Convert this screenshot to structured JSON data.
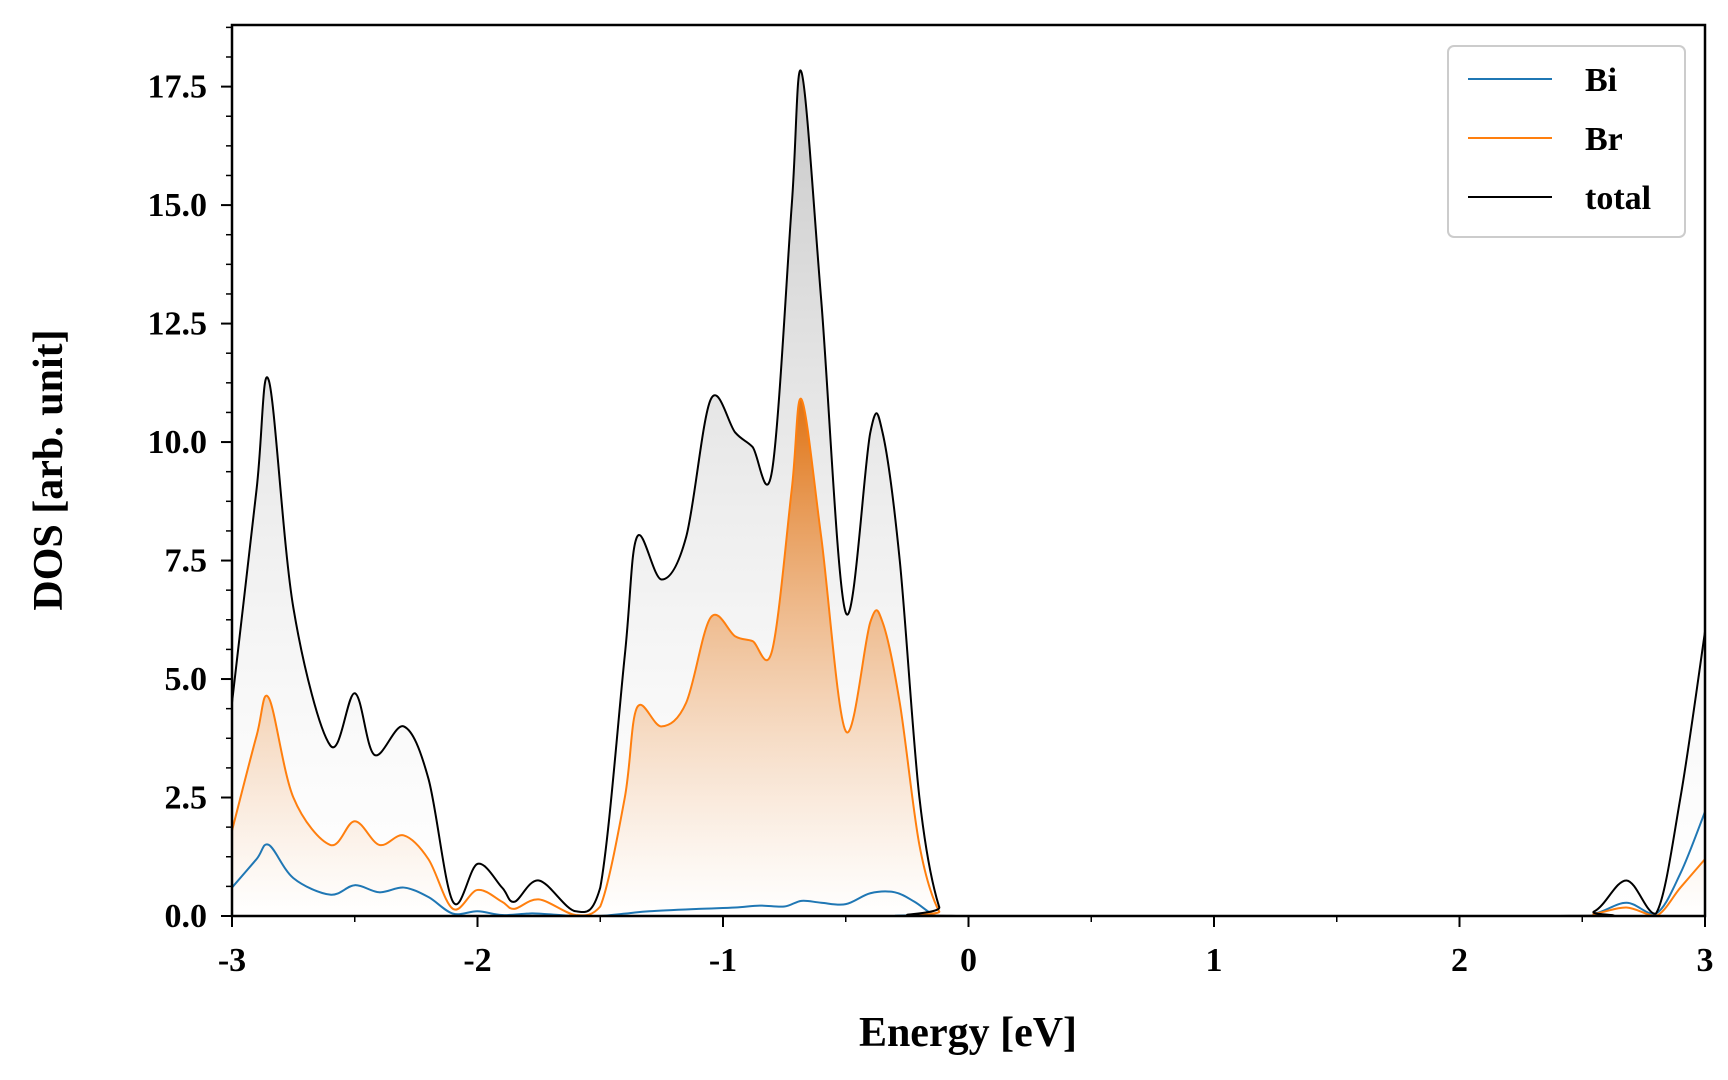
{
  "chart_data": {
    "type": "area",
    "xlabel": "Energy [eV]",
    "ylabel": "DOS [arb. unit]",
    "xlim": [
      -3,
      3
    ],
    "ylim": [
      0,
      18.8
    ],
    "x_ticks": [
      -3,
      -2,
      -1,
      0,
      1,
      2,
      3
    ],
    "x_tick_labels": [
      "-3",
      "-2",
      "-1",
      "0",
      "1",
      "2",
      "3"
    ],
    "y_ticks": [
      0,
      2.5,
      5,
      7.5,
      10,
      12.5,
      15,
      17.5
    ],
    "y_tick_labels": [
      "0.0",
      "2.5",
      "5.0",
      "7.5",
      "10.0",
      "12.5",
      "15.0",
      "17.5"
    ],
    "grid": false,
    "legend_position": "top-right",
    "series": [
      {
        "name": "Bi",
        "color": "#1f77b4",
        "fill": false,
        "x": [
          -3.0,
          -2.9,
          -2.85,
          -2.75,
          -2.6,
          -2.5,
          -2.4,
          -2.3,
          -2.2,
          -2.1,
          -2.0,
          -1.9,
          -1.8,
          -1.75,
          -1.6,
          -1.5,
          -1.4,
          -1.3,
          -1.1,
          -0.95,
          -0.85,
          -0.75,
          -0.68,
          -0.6,
          -0.5,
          -0.4,
          -0.3,
          -0.22,
          -0.15,
          -0.1,
          2.4,
          2.55,
          2.68,
          2.8,
          2.9,
          3.0
        ],
        "y": [
          0.6,
          1.2,
          1.5,
          0.8,
          0.45,
          0.65,
          0.5,
          0.6,
          0.4,
          0.05,
          0.1,
          0.02,
          0.05,
          0.05,
          0.0,
          0.0,
          0.05,
          0.1,
          0.15,
          0.18,
          0.22,
          0.2,
          0.32,
          0.28,
          0.25,
          0.48,
          0.5,
          0.3,
          0.05,
          0.0,
          0.0,
          0.05,
          0.28,
          0.05,
          0.9,
          2.2
        ]
      },
      {
        "name": "Br",
        "color": "#ff7f0e",
        "fill": true,
        "x": [
          -3.0,
          -2.9,
          -2.85,
          -2.75,
          -2.6,
          -2.5,
          -2.4,
          -2.3,
          -2.2,
          -2.1,
          -2.0,
          -1.9,
          -1.85,
          -1.75,
          -1.6,
          -1.5,
          -1.4,
          -1.35,
          -1.25,
          -1.15,
          -1.05,
          -0.95,
          -0.88,
          -0.8,
          -0.72,
          -0.68,
          -0.6,
          -0.5,
          -0.4,
          -0.35,
          -0.28,
          -0.2,
          -0.12,
          -0.05,
          2.4,
          2.55,
          2.68,
          2.8,
          2.9,
          3.0
        ],
        "y": [
          1.8,
          3.8,
          4.6,
          2.5,
          1.5,
          2.0,
          1.5,
          1.7,
          1.2,
          0.15,
          0.55,
          0.3,
          0.15,
          0.35,
          0.02,
          0.2,
          2.5,
          4.4,
          4.0,
          4.5,
          6.3,
          5.9,
          5.8,
          5.6,
          9.0,
          10.9,
          8.0,
          3.9,
          6.2,
          6.2,
          4.5,
          1.5,
          0.1,
          0.0,
          0.0,
          0.05,
          0.18,
          0.0,
          0.6,
          1.2
        ]
      },
      {
        "name": "total",
        "color": "#000000",
        "fill": true,
        "x": [
          -3.0,
          -2.9,
          -2.85,
          -2.75,
          -2.6,
          -2.5,
          -2.42,
          -2.3,
          -2.2,
          -2.1,
          -2.0,
          -1.9,
          -1.85,
          -1.75,
          -1.6,
          -1.5,
          -1.4,
          -1.35,
          -1.25,
          -1.15,
          -1.05,
          -0.95,
          -0.88,
          -0.8,
          -0.72,
          -0.68,
          -0.6,
          -0.5,
          -0.4,
          -0.35,
          -0.28,
          -0.2,
          -0.12,
          -0.05,
          2.4,
          2.55,
          2.68,
          2.8,
          2.9,
          3.0
        ],
        "y": [
          4.5,
          9.0,
          11.3,
          6.5,
          3.6,
          4.7,
          3.4,
          4.0,
          2.9,
          0.3,
          1.1,
          0.6,
          0.3,
          0.75,
          0.1,
          0.6,
          5.5,
          8.0,
          7.1,
          8.0,
          10.9,
          10.2,
          9.9,
          9.4,
          15.0,
          17.8,
          13.0,
          6.4,
          10.2,
          10.2,
          7.5,
          2.5,
          0.2,
          0.0,
          0.0,
          0.1,
          0.75,
          0.05,
          2.5,
          6.0
        ]
      }
    ]
  }
}
